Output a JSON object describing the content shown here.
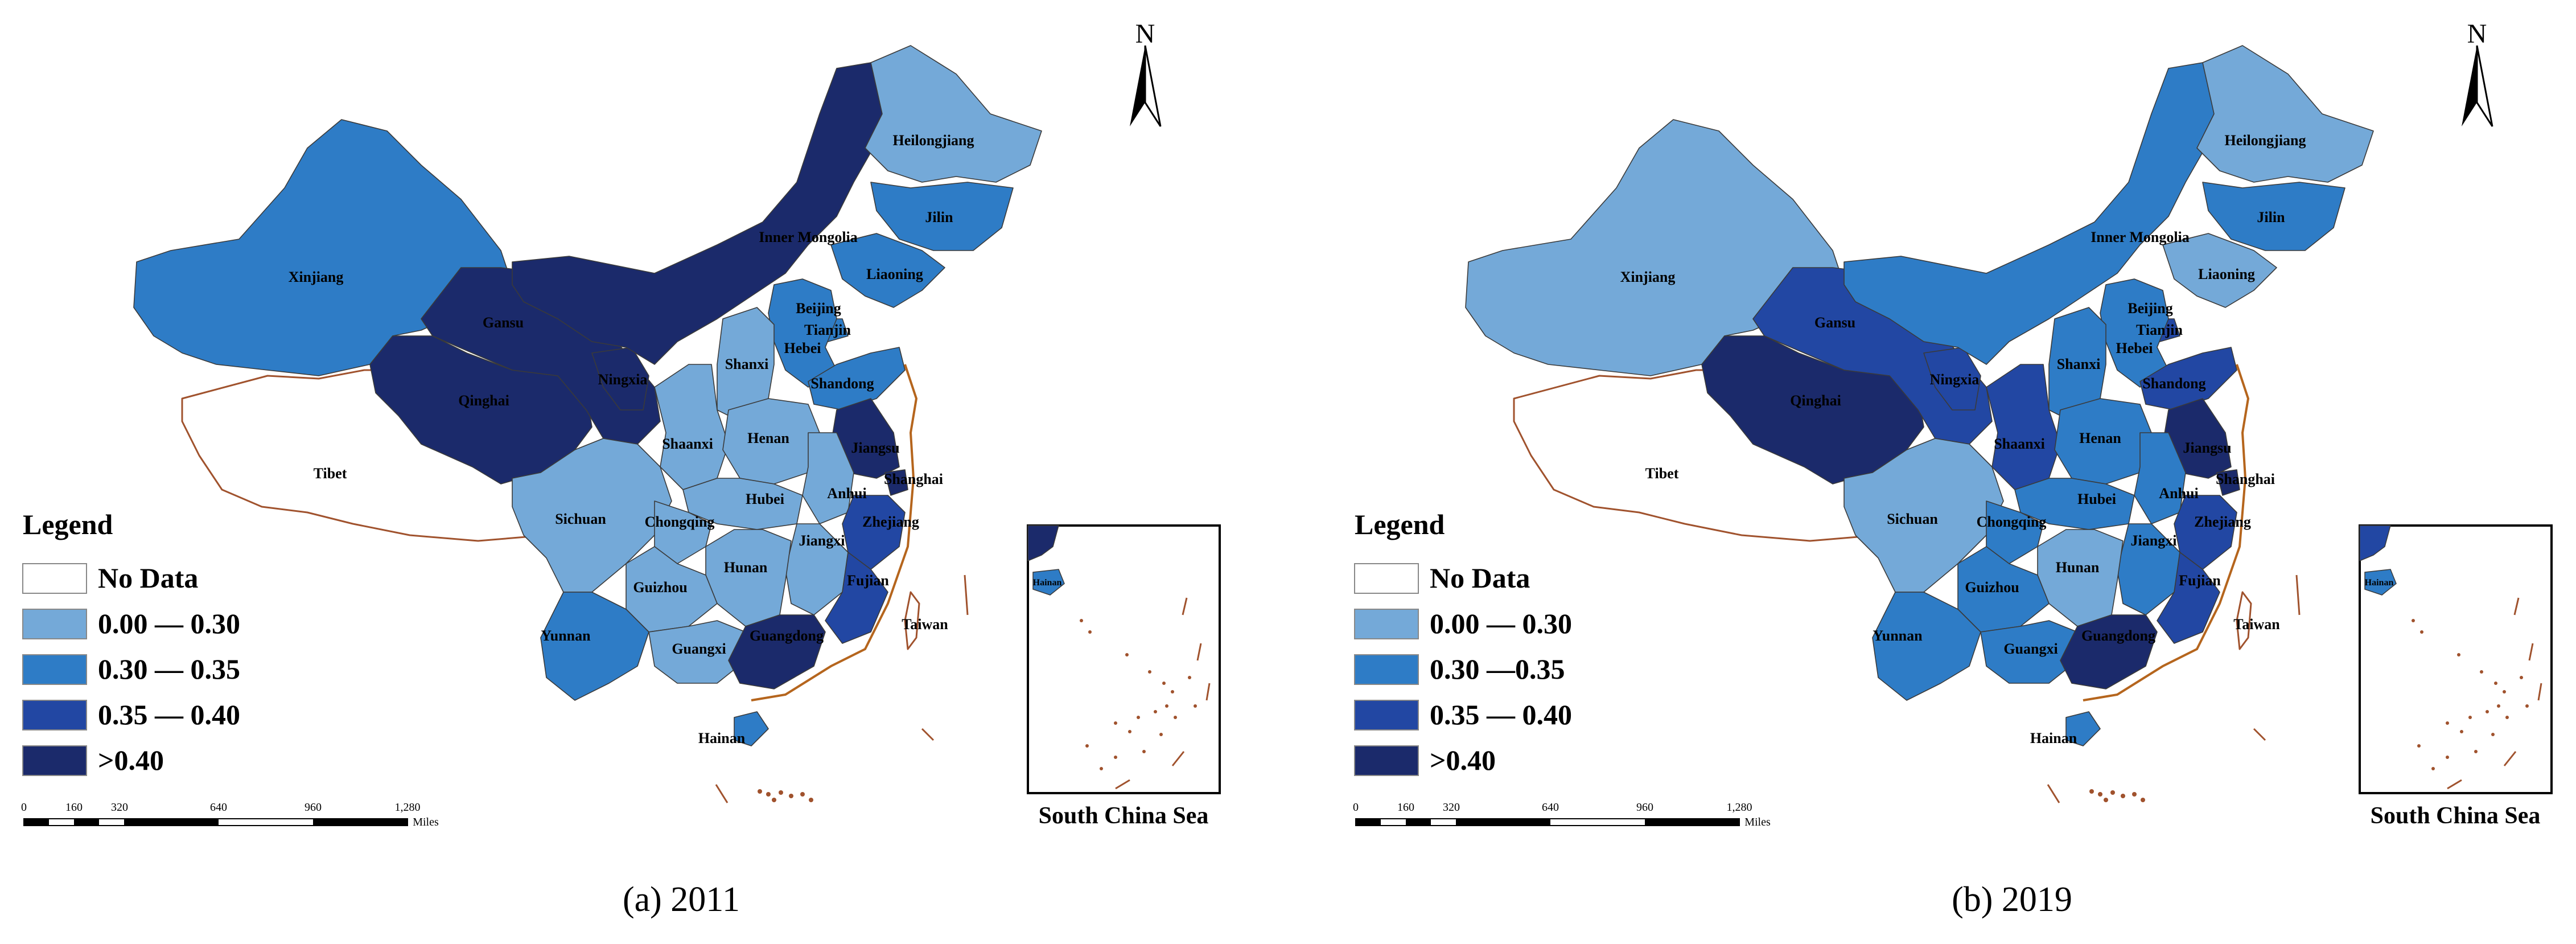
{
  "panels": [
    {
      "caption": "(a)  2011",
      "legend_title": "Legend",
      "legend_items": [
        {
          "label": "No Data",
          "color": "#ffffff"
        },
        {
          "label": "0.00 — 0.30",
          "color": "#74a9d8"
        },
        {
          "label": "0.30 — 0.35",
          "color": "#2e7cc6"
        },
        {
          "label": "0.35 — 0.40",
          "color": "#2247a3"
        },
        {
          "label": ">0.40",
          "color": "#1b2a6b"
        }
      ],
      "scale_ticks": [
        "0",
        "160",
        "320",
        "640",
        "960",
        "1,280"
      ],
      "scale_unit": "Miles",
      "north": "N",
      "inset_title": "South China Sea",
      "inset_label": "Hainan",
      "provinces": [
        {
          "name": "Xinjiang",
          "cls": 2
        },
        {
          "name": "Tibet",
          "cls": 0
        },
        {
          "name": "Qinghai",
          "cls": 4
        },
        {
          "name": "Gansu",
          "cls": 4
        },
        {
          "name": "Ningxia",
          "cls": 4
        },
        {
          "name": "Inner Mongolia",
          "cls": 4
        },
        {
          "name": "Heilongjiang",
          "cls": 1
        },
        {
          "name": "Jilin",
          "cls": 2
        },
        {
          "name": "Liaoning",
          "cls": 2
        },
        {
          "name": "Beijing",
          "cls": 3
        },
        {
          "name": "Tianjin",
          "cls": 2
        },
        {
          "name": "Hebei",
          "cls": 2
        },
        {
          "name": "Shanxi",
          "cls": 1
        },
        {
          "name": "Shandong",
          "cls": 2
        },
        {
          "name": "Shaanxi",
          "cls": 1
        },
        {
          "name": "Henan",
          "cls": 1
        },
        {
          "name": "Jiangsu",
          "cls": 4
        },
        {
          "name": "Shanghai",
          "cls": 4
        },
        {
          "name": "Anhui",
          "cls": 1
        },
        {
          "name": "Hubei",
          "cls": 1
        },
        {
          "name": "Sichuan",
          "cls": 1
        },
        {
          "name": "Chongqing",
          "cls": 1
        },
        {
          "name": "Zhejiang",
          "cls": 3
        },
        {
          "name": "Jiangxi",
          "cls": 1
        },
        {
          "name": "Hunan",
          "cls": 1
        },
        {
          "name": "Guizhou",
          "cls": 1
        },
        {
          "name": "Fujian",
          "cls": 3
        },
        {
          "name": "Yunnan",
          "cls": 2
        },
        {
          "name": "Guangxi",
          "cls": 1
        },
        {
          "name": "Guangdong",
          "cls": 4
        },
        {
          "name": "Hainan",
          "cls": 2
        },
        {
          "name": "Taiwan",
          "cls": 0
        }
      ]
    },
    {
      "caption": "(b)  2019",
      "legend_title": "Legend",
      "legend_items": [
        {
          "label": "No Data",
          "color": "#ffffff"
        },
        {
          "label": "0.00 — 0.30",
          "color": "#74a9d8"
        },
        {
          "label": "0.30 —0.35",
          "color": "#2e7cc6"
        },
        {
          "label": "0.35 — 0.40",
          "color": "#2247a3"
        },
        {
          "label": ">0.40",
          "color": "#1b2a6b"
        }
      ],
      "scale_ticks": [
        "0",
        "160",
        "320",
        "640",
        "960",
        "1,280"
      ],
      "scale_unit": "Miles",
      "north": "N",
      "inset_title": "South China Sea",
      "inset_label": "Hainan",
      "provinces": [
        {
          "name": "Xinjiang",
          "cls": 1
        },
        {
          "name": "Tibet",
          "cls": 0
        },
        {
          "name": "Qinghai",
          "cls": 4
        },
        {
          "name": "Gansu",
          "cls": 3
        },
        {
          "name": "Ningxia",
          "cls": 3
        },
        {
          "name": "Inner Mongolia",
          "cls": 2
        },
        {
          "name": "Heilongjiang",
          "cls": 1
        },
        {
          "name": "Jilin",
          "cls": 2
        },
        {
          "name": "Liaoning",
          "cls": 1
        },
        {
          "name": "Beijing",
          "cls": 3
        },
        {
          "name": "Tianjin",
          "cls": 3
        },
        {
          "name": "Hebei",
          "cls": 2
        },
        {
          "name": "Shanxi",
          "cls": 2
        },
        {
          "name": "Shandong",
          "cls": 3
        },
        {
          "name": "Shaanxi",
          "cls": 3
        },
        {
          "name": "Henan",
          "cls": 2
        },
        {
          "name": "Jiangsu",
          "cls": 4
        },
        {
          "name": "Shanghai",
          "cls": 4
        },
        {
          "name": "Anhui",
          "cls": 2
        },
        {
          "name": "Hubei",
          "cls": 2
        },
        {
          "name": "Sichuan",
          "cls": 1
        },
        {
          "name": "Chongqing",
          "cls": 2
        },
        {
          "name": "Zhejiang",
          "cls": 3
        },
        {
          "name": "Jiangxi",
          "cls": 2
        },
        {
          "name": "Hunan",
          "cls": 1
        },
        {
          "name": "Guizhou",
          "cls": 2
        },
        {
          "name": "Fujian",
          "cls": 3
        },
        {
          "name": "Yunnan",
          "cls": 2
        },
        {
          "name": "Guangxi",
          "cls": 2
        },
        {
          "name": "Guangdong",
          "cls": 4
        },
        {
          "name": "Hainan",
          "cls": 2
        },
        {
          "name": "Taiwan",
          "cls": 0
        }
      ]
    }
  ]
}
